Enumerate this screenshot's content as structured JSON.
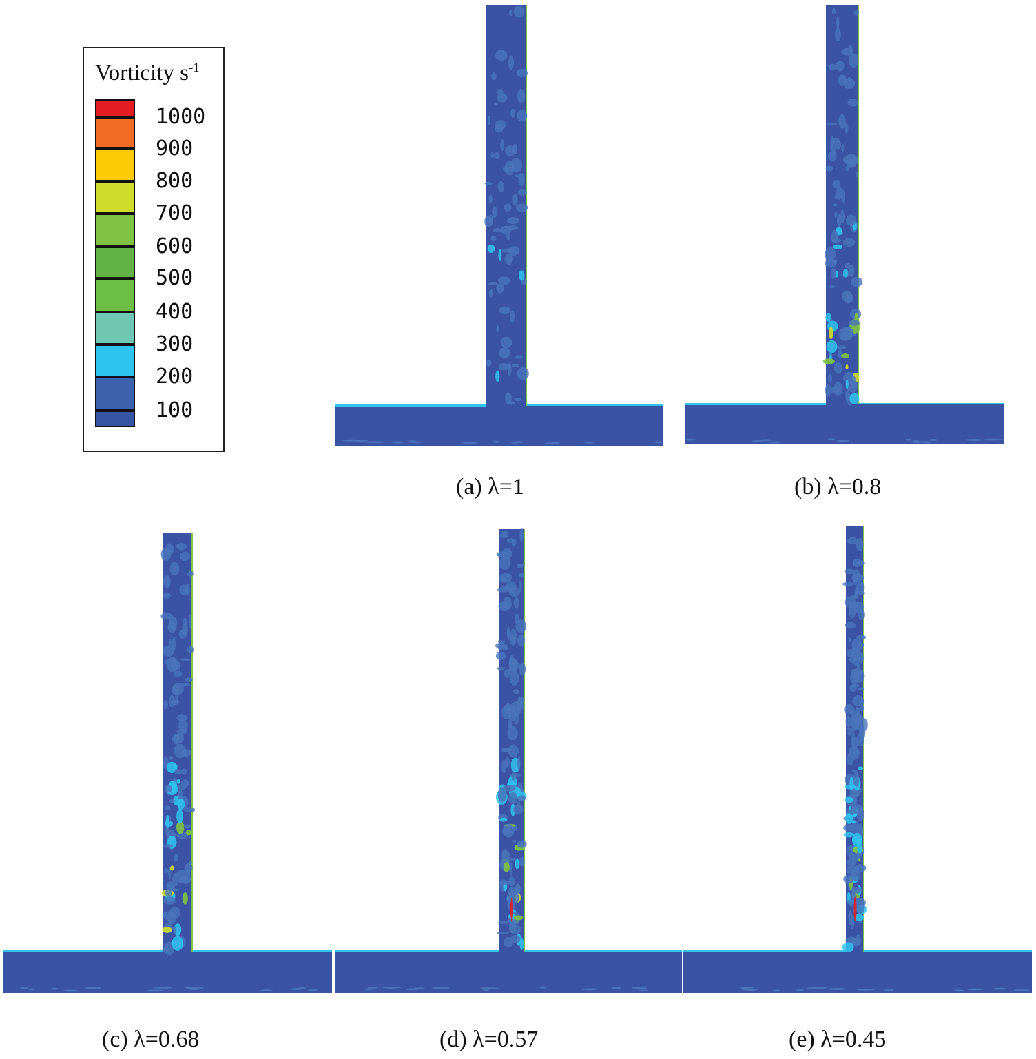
{
  "legend": {
    "title": "Vorticity s",
    "title_superscript": "-1",
    "bins": [
      {
        "color": "#e31b23"
      },
      {
        "color": "#f26c26",
        "label": "1000"
      },
      {
        "color": "#fccb05",
        "label": "900"
      },
      {
        "color": "#cfdd2b",
        "label": "800"
      },
      {
        "color": "#80c241",
        "label": "700"
      },
      {
        "color": "#62b245",
        "label": "600"
      },
      {
        "color": "#6cbe45",
        "label": "500"
      },
      {
        "color": "#6fc7b1",
        "label": "400"
      },
      {
        "color": "#2fc3ef",
        "label": "300"
      },
      {
        "color": "#3c62ad",
        "label": "200"
      },
      {
        "color": "#3653a4",
        "label": "100"
      }
    ]
  },
  "colors": {
    "background_field": "#3a53a4",
    "light_vortex": "#4a74bb",
    "cyan": "#2fc3ef",
    "green": "#80c241",
    "yellow": "#cfdd2b",
    "red": "#e31b23"
  },
  "panels": [
    {
      "caption": "(a) λ=1",
      "intensity": 0.1
    },
    {
      "caption": "(b) λ=0.8",
      "intensity": 0.35
    },
    {
      "caption": "(c) λ=0.68",
      "intensity": 0.6
    },
    {
      "caption": "(d) λ=0.57",
      "intensity": 0.75
    },
    {
      "caption": "(e) λ=0.45",
      "intensity": 0.95
    }
  ]
}
